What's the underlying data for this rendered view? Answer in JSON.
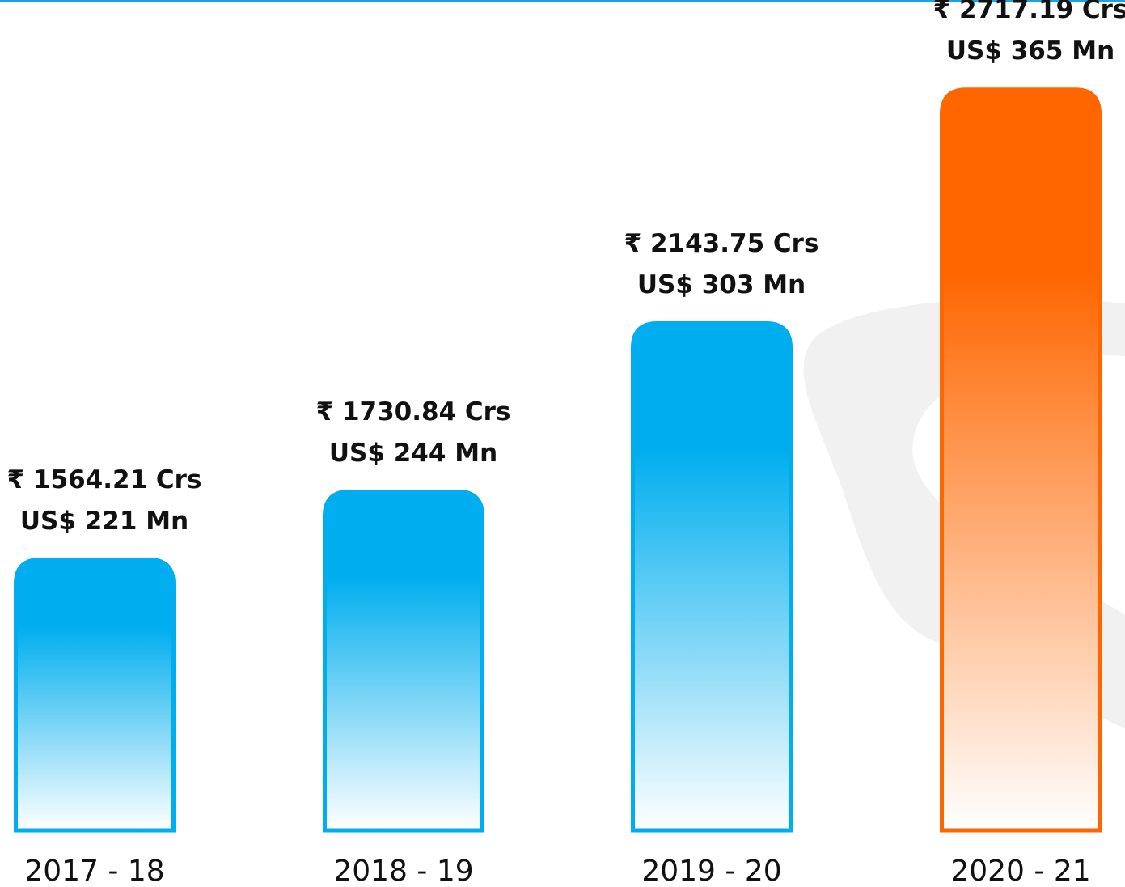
{
  "chart_data": {
    "type": "bar",
    "categories": [
      "2017 - 18",
      "2018 - 19",
      "2019 - 20",
      "2020 - 21"
    ],
    "values": [
      1564.21,
      1730.84,
      2143.75,
      2717.19
    ],
    "value_labels": [
      "₹ 1564.21 Crs",
      "₹ 1730.84 Crs",
      "₹ 2143.75 Crs",
      "₹ 2717.19 Crs"
    ],
    "secondary_values": [
      221,
      244,
      303,
      365
    ],
    "secondary_value_labels": [
      "US$ 221 Mn",
      "US$ 244 Mn",
      "US$ 303 Mn",
      "US$ 365 Mn"
    ],
    "colors": [
      "#00aeef",
      "#00aeef",
      "#00aeef",
      "#ff6600"
    ],
    "ylim": [
      900,
      2800
    ]
  }
}
